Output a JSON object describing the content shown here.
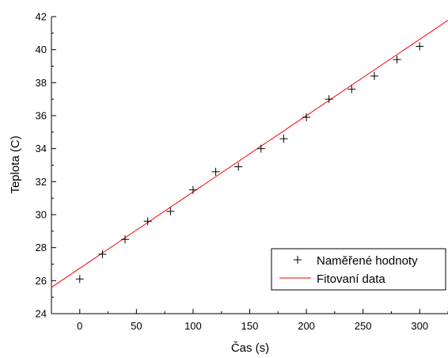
{
  "chart_data": {
    "type": "scatter",
    "xlabel": "Čas (s)",
    "ylabel": "Teplota (C)",
    "xlim": [
      -25,
      325
    ],
    "ylim": [
      24,
      42
    ],
    "xticks": [
      0,
      50,
      100,
      150,
      200,
      250,
      300
    ],
    "yticks": [
      24,
      26,
      28,
      30,
      32,
      34,
      36,
      38,
      40,
      42
    ],
    "grid": false,
    "legend_position": "bottom-right",
    "series": [
      {
        "name": "Naměřené hodnoty",
        "kind": "scatter",
        "marker": "plus",
        "color": "#000000",
        "points": [
          [
            0,
            26.1
          ],
          [
            20,
            27.6
          ],
          [
            40,
            28.5
          ],
          [
            60,
            29.6
          ],
          [
            80,
            30.2
          ],
          [
            100,
            31.5
          ],
          [
            120,
            32.6
          ],
          [
            140,
            32.9
          ],
          [
            160,
            34.0
          ],
          [
            180,
            34.6
          ],
          [
            200,
            35.9
          ],
          [
            220,
            37.0
          ],
          [
            240,
            37.6
          ],
          [
            260,
            38.4
          ],
          [
            280,
            39.4
          ],
          [
            300,
            40.2
          ]
        ]
      },
      {
        "name": "Fitovaní data",
        "kind": "line",
        "color": "#ff0000",
        "intercept": 26.75,
        "slope": 0.04625
      }
    ]
  }
}
